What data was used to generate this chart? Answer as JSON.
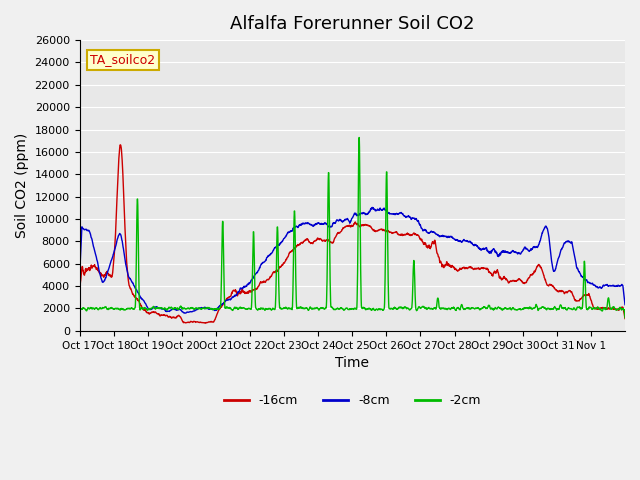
{
  "title": "Alfalfa Forerunner Soil CO2",
  "ylabel": "Soil CO2 (ppm)",
  "xlabel": "Time",
  "annotation": "TA_soilco2",
  "xtick_labels": [
    "Oct 17",
    "Oct 18",
    "Oct 19",
    "Oct 20",
    "Oct 21",
    "Oct 22",
    "Oct 23",
    "Oct 24",
    "Oct 25",
    "Oct 26",
    "Oct 27",
    "Oct 28",
    "Oct 29",
    "Oct 30",
    "Oct 31",
    "Nov 1"
  ],
  "ylim": [
    0,
    26000
  ],
  "yticks": [
    0,
    2000,
    4000,
    6000,
    8000,
    10000,
    12000,
    14000,
    16000,
    18000,
    20000,
    22000,
    24000,
    26000
  ],
  "line_colors": {
    "red": "#cc0000",
    "blue": "#0000cc",
    "green": "#00bb00"
  },
  "legend_labels": [
    "-16cm",
    "-8cm",
    "-2cm"
  ],
  "plot_bg_color": "#e8e8e8",
  "title_fontsize": 13,
  "label_fontsize": 10
}
